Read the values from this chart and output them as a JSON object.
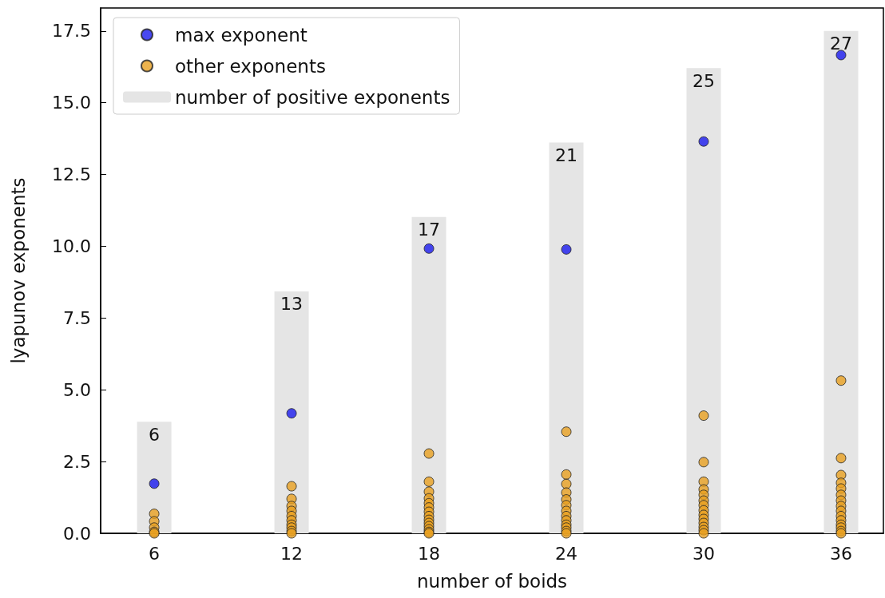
{
  "chart_data": {
    "type": "scatter",
    "xlabel": "number of boids",
    "ylabel": "lyapunov exponents",
    "xlim": [
      3.66,
      37.85
    ],
    "xticks": [
      6,
      12,
      18,
      24,
      30,
      36
    ],
    "ylim": [
      0,
      18.3
    ],
    "yticks": [
      {
        "value": 0,
        "label": "0.0"
      },
      {
        "value": 2.5,
        "label": "2.5"
      },
      {
        "value": 5,
        "label": "5.0"
      },
      {
        "value": 7.5,
        "label": "7.5"
      },
      {
        "value": 10,
        "label": "10.0"
      },
      {
        "value": 12.5,
        "label": "12.5"
      },
      {
        "value": 15,
        "label": "15.0"
      },
      {
        "value": 17.5,
        "label": "17.5"
      }
    ],
    "y2lim": [
      0,
      28.23
    ],
    "grid": false,
    "legend": "top left",
    "marker": "circle",
    "series": [
      {
        "name": "max exponent",
        "color": "#1a1aee",
        "x": [
          6,
          12,
          18,
          24,
          30,
          36
        ],
        "values": [
          1.73,
          4.18,
          9.92,
          9.89,
          13.65,
          16.66
        ]
      },
      {
        "name": "other exponents",
        "color": "#e8a020",
        "x": [
          6,
          6,
          6,
          6,
          6,
          12,
          12,
          12,
          12,
          12,
          12,
          12,
          12,
          12,
          12,
          18,
          18,
          18,
          18,
          18,
          18,
          18,
          18,
          18,
          18,
          18,
          18,
          18,
          18,
          24,
          24,
          24,
          24,
          24,
          24,
          24,
          24,
          24,
          24,
          24,
          24,
          24,
          30,
          30,
          30,
          30,
          30,
          30,
          30,
          30,
          30,
          30,
          30,
          30,
          30,
          30,
          36,
          36,
          36,
          36,
          36,
          36,
          36,
          36,
          36,
          36,
          36,
          36,
          36,
          36,
          36
        ],
        "values": [
          0.68,
          0.42,
          0.2,
          0.05,
          0,
          1.64,
          1.2,
          0.95,
          0.78,
          0.6,
          0.45,
          0.3,
          0.2,
          0.08,
          0,
          2.78,
          1.8,
          1.45,
          1.22,
          1.05,
          0.9,
          0.75,
          0.6,
          0.47,
          0.36,
          0.25,
          0.14,
          0.05,
          0,
          3.54,
          2.05,
          1.72,
          1.42,
          1.18,
          0.98,
          0.78,
          0.6,
          0.45,
          0.3,
          0.2,
          0.08,
          0,
          4.1,
          2.48,
          1.8,
          1.53,
          1.34,
          1.14,
          0.98,
          0.8,
          0.64,
          0.5,
          0.36,
          0.22,
          0.11,
          0,
          5.32,
          2.62,
          2.03,
          1.76,
          1.56,
          1.34,
          1.14,
          0.95,
          0.78,
          0.6,
          0.45,
          0.3,
          0.2,
          0.08,
          0
        ]
      },
      {
        "type": "bar",
        "name": "number of positive exponents",
        "color": "#e5e5e5",
        "x": [
          6,
          12,
          18,
          24,
          30,
          36
        ],
        "axis": "y2",
        "values": [
          6,
          13,
          17,
          21,
          25,
          27
        ],
        "value_labels": [
          "6",
          "13",
          "17",
          "21",
          "25",
          "27"
        ]
      }
    ]
  }
}
